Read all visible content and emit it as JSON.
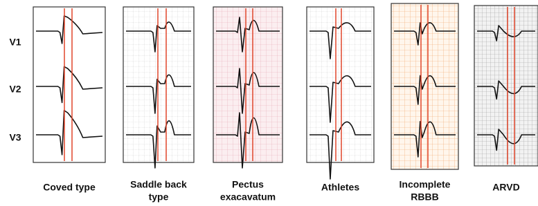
{
  "leads": [
    "V1",
    "V2",
    "V3"
  ],
  "panels": [
    {
      "caption": [
        "Coved type"
      ]
    },
    {
      "caption": [
        "Saddle back",
        "type"
      ]
    },
    {
      "caption": [
        "Pectus",
        "exacavatum"
      ]
    },
    {
      "caption": [
        "Athletes"
      ]
    },
    {
      "caption": [
        "Incomplete",
        "RBBB"
      ]
    },
    {
      "caption": [
        "ARVD"
      ]
    }
  ]
}
